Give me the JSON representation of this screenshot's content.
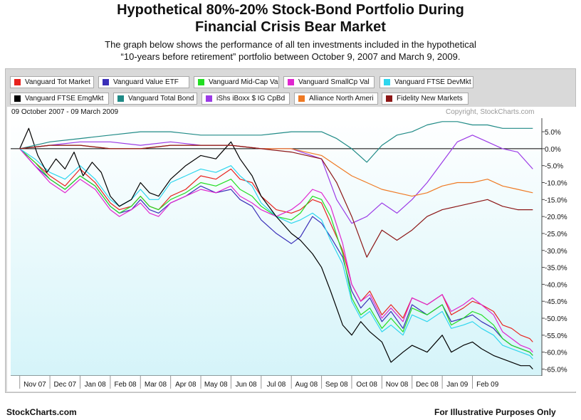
{
  "header": {
    "title_line1": "Hypothetical 80%-20% Stock-Bond Portfolio During",
    "title_line2": "Financial Crisis Bear Market",
    "subtitle_line1": "The graph below shows the performance of all ten investments included in the hypothetical",
    "subtitle_line2": "“10-years before retirement” portfolio between October 9, 2007 and March 9, 2009."
  },
  "chart_meta": {
    "date_range": "09 October 2007 - 09 March 2009",
    "copyright": "Copyright, StockCharts.com"
  },
  "footer": {
    "left": "StockCharts.com",
    "right": "For Illustrative Purposes Only"
  },
  "chart_data": {
    "type": "line",
    "y_unit": "percent change",
    "ylim": [
      -67,
      9
    ],
    "y_ticks": [
      5,
      0,
      -5,
      -10,
      -15,
      -20,
      -25,
      -30,
      -35,
      -40,
      -45,
      -50,
      -55,
      -60,
      -65
    ],
    "y_tick_labels": [
      "5.0%",
      "0.0%",
      "-5.0%",
      "-10.0%",
      "-15.0%",
      "-20.0%",
      "-25.0%",
      "-30.0%",
      "-35.0%",
      "-40.0%",
      "-45.0%",
      "-50.0%",
      "-55.0%",
      "-60.0%",
      "-65.0%"
    ],
    "y_axis_position": "right",
    "zero_line": true,
    "grid": false,
    "x_labels": [
      "Nov 07",
      "Dec 07",
      "Jan 08",
      "Feb 08",
      "Mar 08",
      "Apr 08",
      "May 08",
      "Jun 08",
      "Jul 08",
      "Aug 08",
      "Sep 08",
      "Oct 08",
      "Nov 08",
      "Dec 08",
      "Jan 09",
      "Feb 09"
    ],
    "x_label_months": [
      1,
      2,
      3,
      4,
      5,
      6,
      7,
      8,
      9,
      10,
      11,
      12,
      13,
      14,
      15,
      16
    ],
    "x_domain_months": [
      -0.3,
      17.3
    ],
    "legend_position": "top",
    "series": [
      {
        "name": "Vanguard Tot Market",
        "color": "#e8231f",
        "x": [
          0,
          0.5,
          1.0,
          1.5,
          2.0,
          2.5,
          3.0,
          3.3,
          3.7,
          4.0,
          4.3,
          4.6,
          5.0,
          5.5,
          6.0,
          6.5,
          7.0,
          7.3,
          7.7,
          8.0,
          8.5,
          9.0,
          9.3,
          9.7,
          10.0,
          10.3,
          10.7,
          11.0,
          11.3,
          11.6,
          12.0,
          12.3,
          12.7,
          13.0,
          13.5,
          14.0,
          14.3,
          14.7,
          15.0,
          15.3,
          15.7,
          16.0,
          16.3,
          16.6,
          16.9,
          17.0
        ],
        "y": [
          0,
          -4,
          -8,
          -11,
          -6,
          -10,
          -16,
          -18,
          -17,
          -14,
          -17,
          -18,
          -14,
          -12,
          -8,
          -9,
          -6,
          -9,
          -10,
          -14,
          -18,
          -19,
          -18,
          -15,
          -16,
          -22,
          -30,
          -40,
          -45,
          -42,
          -49,
          -46,
          -50,
          -44,
          -46,
          -43,
          -49,
          -47,
          -45,
          -46,
          -48,
          -52,
          -53,
          -55,
          -56,
          -57
        ]
      },
      {
        "name": "Vanguard Value ETF",
        "color": "#3a2fb8",
        "x": [
          0,
          0.5,
          1.0,
          1.5,
          2.0,
          2.5,
          3.0,
          3.3,
          3.7,
          4.0,
          4.3,
          4.6,
          5.0,
          5.5,
          6.0,
          6.5,
          7.0,
          7.3,
          7.7,
          8.0,
          8.5,
          9.0,
          9.3,
          9.7,
          10.0,
          10.3,
          10.7,
          11.0,
          11.3,
          11.6,
          12.0,
          12.3,
          12.7,
          13.0,
          13.5,
          14.0,
          14.3,
          14.7,
          15.0,
          15.3,
          15.7,
          16.0,
          16.3,
          16.6,
          16.9,
          17.0
        ],
        "y": [
          0,
          -5,
          -9,
          -12,
          -8,
          -11,
          -17,
          -19,
          -18,
          -15,
          -18,
          -19,
          -16,
          -14,
          -11,
          -13,
          -12,
          -15,
          -17,
          -21,
          -25,
          -28,
          -26,
          -20,
          -22,
          -26,
          -32,
          -42,
          -47,
          -44,
          -51,
          -48,
          -53,
          -46,
          -49,
          -46,
          -51,
          -50,
          -49,
          -51,
          -53,
          -56,
          -58,
          -59,
          -60,
          -61
        ]
      },
      {
        "name": "Vanguard Mid-Cap Val",
        "color": "#22dd22",
        "x": [
          0,
          0.5,
          1.0,
          1.5,
          2.0,
          2.5,
          3.0,
          3.3,
          3.7,
          4.0,
          4.3,
          4.6,
          5.0,
          5.5,
          6.0,
          6.5,
          7.0,
          7.3,
          7.7,
          8.0,
          8.5,
          9.0,
          9.3,
          9.7,
          10.0,
          10.3,
          10.7,
          11.0,
          11.3,
          11.6,
          12.0,
          12.3,
          12.7,
          13.0,
          13.5,
          14.0,
          14.3,
          14.7,
          15.0,
          15.3,
          15.7,
          16.0,
          16.3,
          16.6,
          16.9,
          17.0
        ],
        "y": [
          0,
          -4,
          -9,
          -12,
          -8,
          -11,
          -17,
          -19,
          -17,
          -14,
          -17,
          -18,
          -15,
          -13,
          -10,
          -11,
          -9,
          -12,
          -14,
          -17,
          -20,
          -21,
          -19,
          -14,
          -15,
          -20,
          -31,
          -44,
          -49,
          -47,
          -53,
          -50,
          -54,
          -47,
          -49,
          -46,
          -52,
          -50,
          -48,
          -49,
          -52,
          -56,
          -58,
          -59,
          -60,
          -61
        ]
      },
      {
        "name": "Vanguard SmallCp Val",
        "color": "#e026cf",
        "x": [
          0,
          0.5,
          1.0,
          1.5,
          2.0,
          2.5,
          3.0,
          3.3,
          3.7,
          4.0,
          4.3,
          4.6,
          5.0,
          5.5,
          6.0,
          6.5,
          7.0,
          7.3,
          7.7,
          8.0,
          8.5,
          9.0,
          9.3,
          9.7,
          10.0,
          10.3,
          10.7,
          11.0,
          11.3,
          11.6,
          12.0,
          12.3,
          12.7,
          13.0,
          13.5,
          14.0,
          14.3,
          14.7,
          15.0,
          15.3,
          15.7,
          16.0,
          16.3,
          16.6,
          16.9,
          17.0
        ],
        "y": [
          0,
          -5,
          -10,
          -13,
          -9,
          -12,
          -18,
          -20,
          -18,
          -16,
          -19,
          -20,
          -16,
          -14,
          -12,
          -13,
          -11,
          -14,
          -16,
          -18,
          -20,
          -18,
          -16,
          -12,
          -13,
          -17,
          -28,
          -40,
          -45,
          -43,
          -50,
          -47,
          -51,
          -44,
          -46,
          -43,
          -48,
          -46,
          -44,
          -46,
          -49,
          -54,
          -56,
          -58,
          -59,
          -60
        ]
      },
      {
        "name": "Vanguard FTSE DevMkt",
        "color": "#2ed6ee",
        "x": [
          0,
          0.5,
          1.0,
          1.5,
          2.0,
          2.5,
          3.0,
          3.3,
          3.7,
          4.0,
          4.3,
          4.6,
          5.0,
          5.5,
          6.0,
          6.5,
          7.0,
          7.3,
          7.7,
          8.0,
          8.5,
          9.0,
          9.3,
          9.7,
          10.0,
          10.3,
          10.7,
          11.0,
          11.3,
          11.6,
          12.0,
          12.3,
          12.7,
          13.0,
          13.5,
          14.0,
          14.3,
          14.7,
          15.0,
          15.3,
          15.7,
          16.0,
          16.3,
          16.6,
          16.9,
          17.0
        ],
        "y": [
          0,
          -3,
          -7,
          -9,
          -5,
          -9,
          -15,
          -17,
          -15,
          -12,
          -15,
          -15,
          -10,
          -8,
          -6,
          -7,
          -5,
          -8,
          -11,
          -16,
          -20,
          -22,
          -21,
          -19,
          -21,
          -27,
          -34,
          -45,
          -50,
          -48,
          -54,
          -52,
          -55,
          -49,
          -51,
          -48,
          -53,
          -52,
          -51,
          -53,
          -55,
          -58,
          -59,
          -60,
          -61,
          -62
        ]
      },
      {
        "name": "Vanguard FTSE EmgMkt",
        "color": "#000000",
        "x": [
          0,
          0.3,
          0.6,
          0.9,
          1.2,
          1.5,
          1.8,
          2.1,
          2.4,
          2.7,
          3.0,
          3.3,
          3.7,
          4.0,
          4.3,
          4.6,
          5.0,
          5.5,
          6.0,
          6.5,
          7.0,
          7.3,
          7.7,
          8.0,
          8.5,
          9.0,
          9.3,
          9.7,
          10.0,
          10.3,
          10.7,
          11.0,
          11.3,
          11.6,
          12.0,
          12.3,
          12.7,
          13.0,
          13.5,
          14.0,
          14.3,
          14.7,
          15.0,
          15.3,
          15.7,
          16.0,
          16.3,
          16.6,
          16.9,
          17.0
        ],
        "y": [
          0,
          6,
          -2,
          -7,
          -3,
          -6,
          -1,
          -8,
          -4,
          -7,
          -14,
          -17,
          -15,
          -10,
          -13,
          -14,
          -9,
          -5,
          -2,
          -3,
          2,
          -3,
          -8,
          -14,
          -20,
          -25,
          -27,
          -31,
          -35,
          -42,
          -52,
          -55,
          -51,
          -54,
          -57,
          -63,
          -60,
          -58,
          -60,
          -55,
          -60,
          -58,
          -57,
          -59,
          -61,
          -62,
          -63,
          -64,
          -64,
          -65
        ]
      },
      {
        "name": "Vanguard Total Bond",
        "color": "#1f8a86",
        "x": [
          0,
          1,
          2,
          3,
          4,
          5,
          6,
          7,
          8,
          9,
          10,
          10.5,
          11.0,
          11.5,
          12.0,
          12.5,
          13.0,
          13.5,
          14.0,
          14.5,
          15.0,
          15.5,
          16.0,
          16.5,
          17.0
        ],
        "y": [
          0,
          2,
          3,
          4,
          5,
          5,
          4,
          4,
          4,
          5,
          5,
          3,
          0,
          -4,
          1,
          4,
          5,
          7,
          8,
          8,
          7,
          7,
          6,
          6,
          6
        ]
      },
      {
        "name": "iShs iBoxx $ IG CpBd",
        "color": "#9b3ae6",
        "x": [
          0,
          1,
          2,
          3,
          4,
          5,
          6,
          7,
          8,
          9,
          10,
          10.5,
          11.0,
          11.5,
          12.0,
          12.5,
          13.0,
          13.5,
          14.0,
          14.5,
          15.0,
          15.5,
          16.0,
          16.5,
          17.0
        ],
        "y": [
          0,
          1,
          2,
          2,
          1,
          2,
          1,
          1,
          0,
          0,
          -3,
          -15,
          -22,
          -20,
          -16,
          -19,
          -15,
          -10,
          -4,
          2,
          4,
          2,
          0,
          -1,
          -6
        ]
      },
      {
        "name": "Alliance North Ameri",
        "color": "#ef7a24",
        "x": [
          0,
          1,
          2,
          3,
          4,
          5,
          6,
          7,
          8,
          9,
          10,
          10.5,
          11.0,
          11.5,
          12.0,
          12.5,
          13.0,
          13.5,
          14.0,
          14.5,
          15.0,
          15.5,
          16.0,
          16.5,
          17.0
        ],
        "y": [
          0,
          1,
          1,
          0,
          0,
          1,
          1,
          1,
          0,
          0,
          -2,
          -5,
          -8,
          -10,
          -12,
          -13,
          -14,
          -13,
          -11,
          -10,
          -10,
          -9,
          -11,
          -12,
          -13
        ]
      },
      {
        "name": "Fidelity New Markets",
        "color": "#8c1616",
        "x": [
          0,
          1,
          2,
          3,
          4,
          5,
          6,
          7,
          8,
          9,
          10,
          10.5,
          11.0,
          11.5,
          12.0,
          12.5,
          13.0,
          13.5,
          14.0,
          14.5,
          15.0,
          15.5,
          16.0,
          16.5,
          17.0
        ],
        "y": [
          0,
          1,
          1,
          0,
          0,
          1,
          1,
          1,
          0,
          -1,
          -3,
          -10,
          -20,
          -32,
          -24,
          -27,
          -24,
          -20,
          -18,
          -17,
          -16,
          -15,
          -17,
          -18,
          -18
        ]
      }
    ]
  }
}
